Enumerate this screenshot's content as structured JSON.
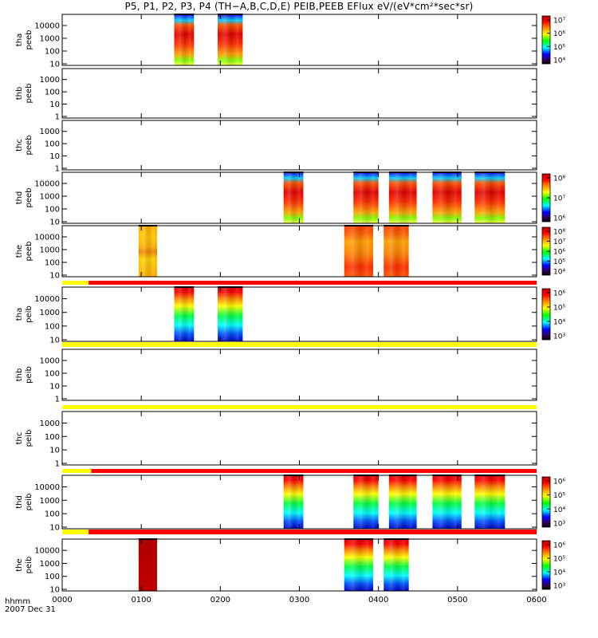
{
  "title": "P5, P1, P2, P3, P4 (TH−A,B,C,D,E) PEIB,PEEB EFlux eV/(eV*cm²*sec*sr)",
  "footer": {
    "time_label": "hhmm",
    "date_label": "2007 Dec 31"
  },
  "chart_data": {
    "type": "heatmap",
    "x": {
      "ticks": [
        "0000",
        "0100",
        "0200",
        "0300",
        "0400",
        "0500",
        "0600"
      ],
      "range": [
        "00:00",
        "06:00"
      ]
    },
    "panels": [
      {
        "probe": "tha",
        "instrument": "peeb",
        "y_ticks": [
          "10",
          "100",
          "1000",
          "10000"
        ],
        "colorbar_ticks": [
          "10⁴",
          "10⁵",
          "10⁶",
          "10⁷"
        ],
        "bursts": [
          {
            "start": "01:25",
            "end": "01:40",
            "style": "electron"
          },
          {
            "start": "01:58",
            "end": "02:17",
            "style": "electron"
          }
        ]
      },
      {
        "probe": "thb",
        "instrument": "peeb",
        "y_ticks": [
          "1",
          "10",
          "100",
          "1000"
        ],
        "colorbar_ticks": [],
        "bursts": []
      },
      {
        "probe": "thc",
        "instrument": "peeb",
        "y_ticks": [
          "1",
          "10",
          "100",
          "1000"
        ],
        "colorbar_ticks": [],
        "bursts": []
      },
      {
        "probe": "thd",
        "instrument": "peeb",
        "y_ticks": [
          "10",
          "100",
          "1000",
          "10000"
        ],
        "colorbar_ticks": [
          "10⁶",
          "10⁷",
          "10⁸"
        ],
        "bursts": [
          {
            "start": "02:48",
            "end": "03:03",
            "style": "electron"
          },
          {
            "start": "03:41",
            "end": "04:00",
            "style": "electron"
          },
          {
            "start": "04:08",
            "end": "04:29",
            "style": "electron"
          },
          {
            "start": "04:41",
            "end": "05:03",
            "style": "electron"
          },
          {
            "start": "05:13",
            "end": "05:36",
            "style": "electron"
          }
        ]
      },
      {
        "probe": "the",
        "instrument": "peeb",
        "y_ticks": [
          "10",
          "100",
          "1000",
          "10000"
        ],
        "colorbar_ticks": [
          "10⁴",
          "10⁵",
          "10⁶",
          "10⁷",
          "10⁸"
        ],
        "bursts": [
          {
            "start": "00:58",
            "end": "01:12",
            "style": "electron_e1"
          },
          {
            "start": "03:34",
            "end": "03:56",
            "style": "electron_e"
          },
          {
            "start": "04:04",
            "end": "04:23",
            "style": "electron_e"
          }
        ]
      },
      {
        "probe": "tha",
        "instrument": "peib",
        "y_ticks": [
          "10",
          "100",
          "1000",
          "10000"
        ],
        "colorbar_ticks": [
          "10³",
          "10⁴",
          "10⁵",
          "10⁶"
        ],
        "bursts": [
          {
            "start": "01:25",
            "end": "01:40",
            "style": "ion"
          },
          {
            "start": "01:58",
            "end": "02:17",
            "style": "ion"
          }
        ]
      },
      {
        "probe": "thb",
        "instrument": "peib",
        "y_ticks": [
          "1",
          "10",
          "100",
          "1000"
        ],
        "colorbar_ticks": [],
        "bursts": []
      },
      {
        "probe": "thc",
        "instrument": "peib",
        "y_ticks": [
          "1",
          "10",
          "100",
          "1000"
        ],
        "colorbar_ticks": [],
        "bursts": []
      },
      {
        "probe": "thd",
        "instrument": "peib",
        "y_ticks": [
          "10",
          "100",
          "1000",
          "10000"
        ],
        "colorbar_ticks": [
          "10³",
          "10⁴",
          "10⁵",
          "10⁶"
        ],
        "bursts": [
          {
            "start": "02:48",
            "end": "03:03",
            "style": "ion"
          },
          {
            "start": "03:41",
            "end": "04:00",
            "style": "ion"
          },
          {
            "start": "04:08",
            "end": "04:29",
            "style": "ion"
          },
          {
            "start": "04:41",
            "end": "05:03",
            "style": "ion"
          },
          {
            "start": "05:13",
            "end": "05:36",
            "style": "ion"
          }
        ]
      },
      {
        "probe": "the",
        "instrument": "peib",
        "y_ticks": [
          "10",
          "100",
          "1000",
          "10000"
        ],
        "colorbar_ticks": [
          "10³",
          "10⁴",
          "10⁵",
          "10⁶"
        ],
        "bursts": [
          {
            "start": "00:58",
            "end": "01:12",
            "style": "ion_solid"
          },
          {
            "start": "03:34",
            "end": "03:56",
            "style": "ion"
          },
          {
            "start": "04:04",
            "end": "04:23",
            "style": "ion"
          }
        ]
      }
    ],
    "mode_bars": [
      {
        "after_panel": 4,
        "segments": [
          {
            "start": "00:00",
            "end": "00:20",
            "color": "#ffff00"
          },
          {
            "start": "00:20",
            "end": "06:00",
            "color": "#ff0000"
          }
        ]
      },
      {
        "after_panel": 5,
        "segments": [
          {
            "start": "00:00",
            "end": "06:00",
            "color": "#ffff00"
          }
        ]
      },
      {
        "after_panel": 6,
        "segments": [
          {
            "start": "00:00",
            "end": "06:00",
            "color": "#ffff00"
          }
        ]
      },
      {
        "after_panel": 7,
        "segments": [
          {
            "start": "00:00",
            "end": "00:22",
            "color": "#ffff00"
          },
          {
            "start": "00:22",
            "end": "06:00",
            "color": "#ff0000"
          }
        ]
      },
      {
        "after_panel": 8,
        "segments": [
          {
            "start": "00:00",
            "end": "00:20",
            "color": "#ffff00"
          },
          {
            "start": "00:20",
            "end": "06:00",
            "color": "#ff0000"
          }
        ]
      }
    ],
    "grid": false,
    "colors": {
      "scale": [
        "#000000",
        "#3a005c",
        "#0000ff",
        "#00ffff",
        "#00ff00",
        "#ffff00",
        "#ff8000",
        "#ff0000",
        "#c00000"
      ]
    }
  }
}
